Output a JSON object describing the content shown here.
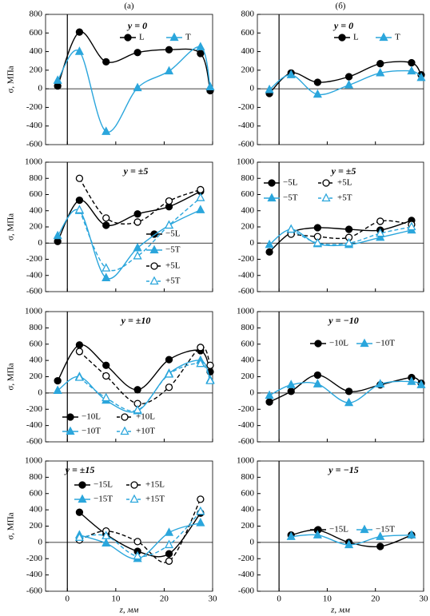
{
  "chart_data": [
    {
      "type": "line",
      "panel_label": "(а)",
      "title": "y = 0",
      "ylabel": "σ, МПа",
      "xlim": [
        -4.5,
        30
      ],
      "xticks": [
        0,
        10,
        20,
        30
      ],
      "ylim": [
        -600,
        800
      ],
      "yticks": [
        -600,
        -400,
        -200,
        0,
        200,
        400,
        600,
        800
      ],
      "series": [
        {
          "name": "L",
          "color": "#000000",
          "marker": "circle",
          "filled": true,
          "dashed": false,
          "x": [
            -2,
            2.5,
            8,
            14.5,
            21,
            27.5,
            29.5
          ],
          "values": [
            30,
            610,
            290,
            390,
            420,
            380,
            -20
          ]
        },
        {
          "name": "T",
          "color": "#2ba6dc",
          "marker": "triangle",
          "filled": true,
          "dashed": false,
          "x": [
            -2,
            2.5,
            8,
            14.5,
            21,
            27.5,
            29.5
          ],
          "values": [
            90,
            400,
            -460,
            10,
            190,
            450,
            20
          ]
        }
      ]
    },
    {
      "type": "line",
      "panel_label": "(б)",
      "title": "y = 0",
      "xlim": [
        -4.5,
        30
      ],
      "xticks": [
        0,
        10,
        20,
        30
      ],
      "ylim": [
        -600,
        800
      ],
      "yticks": [
        -600,
        -400,
        -200,
        0,
        200,
        400,
        600,
        800
      ],
      "series": [
        {
          "name": "L",
          "color": "#000000",
          "marker": "circle",
          "filled": true,
          "dashed": false,
          "x": [
            -2,
            2.5,
            8,
            14.5,
            21,
            27.5,
            29.5
          ],
          "values": [
            -50,
            170,
            70,
            130,
            270,
            280,
            150
          ]
        },
        {
          "name": "T",
          "color": "#2ba6dc",
          "marker": "triangle",
          "filled": true,
          "dashed": false,
          "x": [
            -2,
            2.5,
            8,
            14.5,
            21,
            27.5,
            29.5
          ],
          "values": [
            -10,
            150,
            -60,
            40,
            170,
            190,
            120
          ]
        }
      ]
    },
    {
      "type": "line",
      "title": "y = ±5",
      "ylabel": "σ, МПа",
      "xlim": [
        -4.5,
        30
      ],
      "xticks": [
        0,
        10,
        20,
        30
      ],
      "ylim": [
        -600,
        1000
      ],
      "yticks": [
        -600,
        -400,
        -200,
        0,
        200,
        400,
        600,
        800,
        1000
      ],
      "series": [
        {
          "name": "−5L",
          "color": "#000000",
          "marker": "circle",
          "filled": true,
          "dashed": false,
          "x": [
            -2,
            2.5,
            8,
            14.5,
            21,
            27.5
          ],
          "values": [
            20,
            530,
            220,
            360,
            450,
            640
          ]
        },
        {
          "name": "−5T",
          "color": "#2ba6dc",
          "marker": "triangle",
          "filled": true,
          "dashed": false,
          "x": [
            -2,
            2.5,
            8,
            14.5,
            21,
            27.5
          ],
          "values": [
            90,
            400,
            -430,
            -60,
            220,
            410
          ]
        },
        {
          "name": "+5L",
          "color": "#000000",
          "marker": "circle",
          "filled": false,
          "dashed": true,
          "x": [
            2.5,
            8,
            14.5,
            21,
            27.5
          ],
          "values": [
            800,
            310,
            260,
            520,
            660
          ]
        },
        {
          "name": "+5T",
          "color": "#2ba6dc",
          "marker": "triangle",
          "filled": false,
          "dashed": true,
          "x": [
            2.5,
            8,
            14.5,
            21,
            27.5
          ],
          "values": [
            410,
            -310,
            -160,
            220,
            560
          ]
        }
      ]
    },
    {
      "type": "line",
      "title": "y = ±5",
      "xlim": [
        -4.5,
        30
      ],
      "xticks": [
        0,
        10,
        20,
        30
      ],
      "ylim": [
        -600,
        1000
      ],
      "yticks": [
        -600,
        -400,
        -200,
        0,
        200,
        400,
        600,
        800,
        1000
      ],
      "series": [
        {
          "name": "−5L",
          "color": "#000000",
          "marker": "circle",
          "filled": true,
          "dashed": false,
          "x": [
            -2,
            2.5,
            8,
            14.5,
            21,
            27.5
          ],
          "values": [
            -110,
            130,
            190,
            170,
            160,
            280
          ]
        },
        {
          "name": "+5L",
          "color": "#000000",
          "marker": "circle",
          "filled": false,
          "dashed": true,
          "x": [
            2.5,
            8,
            14.5,
            21,
            27.5
          ],
          "values": [
            110,
            80,
            70,
            270,
            230
          ]
        },
        {
          "name": "−5T",
          "color": "#2ba6dc",
          "marker": "triangle",
          "filled": true,
          "dashed": false,
          "x": [
            -2,
            2.5,
            8,
            14.5,
            21,
            27.5
          ],
          "values": [
            -20,
            170,
            -10,
            -20,
            70,
            160
          ]
        },
        {
          "name": "+5T",
          "color": "#2ba6dc",
          "marker": "triangle",
          "filled": false,
          "dashed": true,
          "x": [
            2.5,
            8,
            14.5,
            21,
            27.5
          ],
          "values": [
            170,
            0,
            0,
            120,
            200
          ]
        }
      ]
    },
    {
      "type": "line",
      "title": "y = ±10",
      "ylabel": "σ, МПа",
      "xlim": [
        -4.5,
        30
      ],
      "xticks": [
        0,
        10,
        20,
        30
      ],
      "ylim": [
        -600,
        1000
      ],
      "yticks": [
        -600,
        -400,
        -200,
        0,
        200,
        400,
        600,
        800,
        1000
      ],
      "series": [
        {
          "name": "−10L",
          "color": "#000000",
          "marker": "circle",
          "filled": true,
          "dashed": false,
          "x": [
            -2,
            2.5,
            8,
            14.5,
            21,
            27.5,
            29.5
          ],
          "values": [
            150,
            590,
            340,
            40,
            410,
            520,
            260
          ]
        },
        {
          "name": "+10L",
          "color": "#000000",
          "marker": "circle",
          "filled": false,
          "dashed": true,
          "x": [
            2.5,
            8,
            14.5,
            21,
            27.5,
            29.5
          ],
          "values": [
            510,
            210,
            -130,
            70,
            560,
            340
          ]
        },
        {
          "name": "−10T",
          "color": "#2ba6dc",
          "marker": "triangle",
          "filled": true,
          "dashed": false,
          "x": [
            -2,
            2.5,
            8,
            14.5,
            21,
            27.5,
            29.5
          ],
          "values": [
            30,
            200,
            -90,
            -220,
            240,
            400,
            160
          ]
        },
        {
          "name": "+10T",
          "color": "#2ba6dc",
          "marker": "triangle",
          "filled": false,
          "dashed": true,
          "x": [
            2.5,
            8,
            14.5,
            21,
            27.5,
            29.5
          ],
          "values": [
            190,
            -60,
            -210,
            230,
            360,
            150
          ]
        }
      ]
    },
    {
      "type": "line",
      "title": "y = −10",
      "xlim": [
        -4.5,
        30
      ],
      "xticks": [
        0,
        10,
        20,
        30
      ],
      "ylim": [
        -600,
        1000
      ],
      "yticks": [
        -600,
        -400,
        -200,
        0,
        200,
        400,
        600,
        800,
        1000
      ],
      "series": [
        {
          "name": "−10L",
          "color": "#000000",
          "marker": "circle",
          "filled": true,
          "dashed": false,
          "x": [
            -2,
            2.5,
            8,
            14.5,
            21,
            27.5,
            29.5
          ],
          "values": [
            -110,
            20,
            220,
            20,
            100,
            190,
            120
          ]
        },
        {
          "name": "−10T",
          "color": "#2ba6dc",
          "marker": "triangle",
          "filled": true,
          "dashed": false,
          "x": [
            -2,
            2.5,
            8,
            14.5,
            21,
            27.5,
            29.5
          ],
          "values": [
            -30,
            100,
            110,
            -120,
            110,
            140,
            100
          ]
        }
      ]
    },
    {
      "type": "line",
      "title": "y = ±15",
      "ylabel": "σ, МПа",
      "xlabel": "z, мм",
      "xlim": [
        -4.5,
        30
      ],
      "xticks": [
        0,
        10,
        20,
        30
      ],
      "ylim": [
        -600,
        1000
      ],
      "yticks": [
        -600,
        -400,
        -200,
        0,
        200,
        400,
        600,
        800,
        1000
      ],
      "series": [
        {
          "name": "−15L",
          "color": "#000000",
          "marker": "circle",
          "filled": true,
          "dashed": false,
          "x": [
            2.5,
            8,
            14.5,
            21,
            27.5
          ],
          "values": [
            370,
            100,
            -110,
            -140,
            360
          ]
        },
        {
          "name": "+15L",
          "color": "#000000",
          "marker": "circle",
          "filled": false,
          "dashed": true,
          "x": [
            2.5,
            8,
            14.5,
            21,
            27.5
          ],
          "values": [
            30,
            140,
            10,
            -230,
            530
          ]
        },
        {
          "name": "−15T",
          "color": "#2ba6dc",
          "marker": "triangle",
          "filled": true,
          "dashed": false,
          "x": [
            2.5,
            8,
            14.5,
            21,
            27.5
          ],
          "values": [
            90,
            -10,
            -200,
            120,
            240
          ]
        },
        {
          "name": "+15T",
          "color": "#2ba6dc",
          "marker": "triangle",
          "filled": false,
          "dashed": true,
          "x": [
            2.5,
            8,
            14.5,
            21,
            27.5
          ],
          "values": [
            60,
            80,
            -170,
            -30,
            380
          ]
        }
      ]
    },
    {
      "type": "line",
      "title": "y = −15",
      "xlabel": "z, мм",
      "xlim": [
        -4.5,
        30
      ],
      "xticks": [
        0,
        10,
        20,
        30
      ],
      "ylim": [
        -600,
        1000
      ],
      "yticks": [
        -600,
        -400,
        -200,
        0,
        200,
        400,
        600,
        800,
        1000
      ],
      "series": [
        {
          "name": "−15L",
          "color": "#000000",
          "marker": "circle",
          "filled": true,
          "dashed": false,
          "x": [
            2.5,
            8,
            14.5,
            21,
            27.5
          ],
          "values": [
            90,
            150,
            0,
            -50,
            90
          ]
        },
        {
          "name": "−15T",
          "color": "#2ba6dc",
          "marker": "triangle",
          "filled": true,
          "dashed": false,
          "x": [
            2.5,
            8,
            14.5,
            21,
            27.5
          ],
          "values": [
            70,
            90,
            -30,
            70,
            90
          ]
        }
      ]
    }
  ]
}
